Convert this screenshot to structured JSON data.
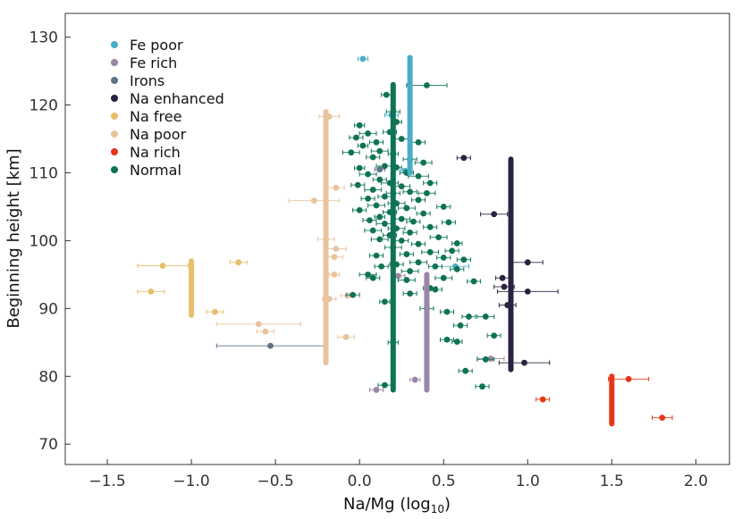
{
  "chart_data": {
    "type": "scatter",
    "xlabel": "Na/Mg (log",
    "xlabel_sub": "10",
    "xlabel_close": ")",
    "ylabel": "Beginning height [km]",
    "xlim": [
      -1.75,
      2.2
    ],
    "ylim": [
      67,
      133.5
    ],
    "xticks": [
      -1.5,
      -1.0,
      -0.5,
      0.0,
      0.5,
      1.0,
      1.5,
      2.0
    ],
    "xtick_labels": [
      "−1.5",
      "−1.0",
      "−0.5",
      "0.0",
      "0.5",
      "1.0",
      "1.5",
      "2.0"
    ],
    "yticks": [
      70,
      80,
      90,
      100,
      110,
      120,
      130
    ],
    "ytick_labels": [
      "70",
      "80",
      "90",
      "100",
      "110",
      "120",
      "130"
    ],
    "grid": false,
    "legend_position": "top-left",
    "categories": [
      {
        "name": "Fe poor",
        "color": "#4aacc9"
      },
      {
        "name": "Fe rich",
        "color": "#9a86a6"
      },
      {
        "name": "Irons",
        "color": "#5f7387"
      },
      {
        "name": "Na enhanced",
        "color": "#2b2140"
      },
      {
        "name": "Na free",
        "color": "#e6bf6b"
      },
      {
        "name": "Na poor",
        "color": "#e8c39e"
      },
      {
        "name": "Na rich",
        "color": "#e5361a"
      },
      {
        "name": "Normal",
        "color": "#0e7355"
      }
    ],
    "range_bars": [
      {
        "category": "Fe poor",
        "x": 0.3,
        "y_low": 110,
        "y_high": 127
      },
      {
        "category": "Fe rich",
        "x": 0.4,
        "y_low": 78,
        "y_high": 95
      },
      {
        "category": "Na enhanced",
        "x": 0.9,
        "y_low": 81,
        "y_high": 112
      },
      {
        "category": "Na free",
        "x": -1.0,
        "y_low": 89,
        "y_high": 97
      },
      {
        "category": "Na poor",
        "x": -0.2,
        "y_low": 82,
        "y_high": 119
      },
      {
        "category": "Na rich",
        "x": 1.5,
        "y_low": 73,
        "y_high": 80
      },
      {
        "category": "Normal",
        "x": 0.2,
        "y_low": 78,
        "y_high": 123
      }
    ],
    "series": [
      {
        "name": "Fe poor",
        "points": [
          {
            "x": 0.02,
            "y": 126.8,
            "xerr": 0.03
          },
          {
            "x": 0.57,
            "y": 96.2,
            "xerr": 0.08
          },
          {
            "x": 0.27,
            "y": 110.3,
            "xerr": 0.03
          },
          {
            "x": 0.19,
            "y": 118.5,
            "xerr": 0.04
          }
        ]
      },
      {
        "name": "Fe rich",
        "points": [
          {
            "x": 0.1,
            "y": 78.0,
            "xerr": 0.04
          },
          {
            "x": 0.33,
            "y": 79.5,
            "xerr": 0.03
          },
          {
            "x": 0.78,
            "y": 82.6,
            "xerr": 0.08
          },
          {
            "x": 0.23,
            "y": 94.8,
            "xerr": 0.04
          }
        ]
      },
      {
        "name": "Irons",
        "points": [
          {
            "x": -0.53,
            "y": 84.5,
            "xerr": 0.32
          },
          {
            "x": 0.12,
            "y": 110.5,
            "xerr": 0.03
          }
        ]
      },
      {
        "name": "Na enhanced",
        "points": [
          {
            "x": 0.62,
            "y": 112.2,
            "xerr": 0.04
          },
          {
            "x": 0.8,
            "y": 103.9,
            "xerr": 0.08
          },
          {
            "x": 1.0,
            "y": 96.8,
            "xerr": 0.09
          },
          {
            "x": 0.85,
            "y": 94.5,
            "xerr": 0.04
          },
          {
            "x": 0.86,
            "y": 93.2,
            "xerr": 0.06
          },
          {
            "x": 1.0,
            "y": 92.5,
            "xerr": 0.18
          },
          {
            "x": 0.88,
            "y": 90.5,
            "xerr": 0.05
          },
          {
            "x": 0.98,
            "y": 82.0,
            "xerr": 0.15
          }
        ]
      },
      {
        "name": "Na free",
        "points": [
          {
            "x": -1.17,
            "y": 96.3,
            "xerr": 0.15
          },
          {
            "x": -1.24,
            "y": 92.5,
            "xerr": 0.08
          },
          {
            "x": -0.86,
            "y": 89.5,
            "xerr": 0.05
          },
          {
            "x": -0.72,
            "y": 96.8,
            "xerr": 0.05
          }
        ]
      },
      {
        "name": "Na poor",
        "points": [
          {
            "x": -0.18,
            "y": 118.3,
            "xerr": 0.06
          },
          {
            "x": -0.14,
            "y": 107.8,
            "xerr": 0.05
          },
          {
            "x": -0.27,
            "y": 105.9,
            "xerr": 0.15
          },
          {
            "x": -0.2,
            "y": 100.2,
            "xerr": 0.05
          },
          {
            "x": -0.14,
            "y": 98.8,
            "xerr": 0.06
          },
          {
            "x": -0.15,
            "y": 97.6,
            "xerr": 0.05
          },
          {
            "x": -0.15,
            "y": 95.0,
            "xerr": 0.03
          },
          {
            "x": -0.07,
            "y": 91.9,
            "xerr": 0.04
          },
          {
            "x": -0.18,
            "y": 91.4,
            "xerr": 0.04
          },
          {
            "x": -0.6,
            "y": 87.7,
            "xerr": 0.25
          },
          {
            "x": -0.56,
            "y": 86.6,
            "xerr": 0.05
          },
          {
            "x": -0.08,
            "y": 85.8,
            "xerr": 0.05
          }
        ]
      },
      {
        "name": "Na rich",
        "points": [
          {
            "x": 1.6,
            "y": 79.6,
            "xerr": 0.12
          },
          {
            "x": 1.09,
            "y": 76.6,
            "xerr": 0.04
          },
          {
            "x": 1.8,
            "y": 73.9,
            "xerr": 0.06
          }
        ]
      },
      {
        "name": "Normal",
        "points": [
          {
            "x": 0.4,
            "y": 122.9,
            "xerr": 0.12
          },
          {
            "x": 0.16,
            "y": 121.5,
            "xerr": 0.03
          },
          {
            "x": 0.2,
            "y": 119.0,
            "xerr": 0.04
          },
          {
            "x": 0.22,
            "y": 117.5,
            "xerr": 0.03
          },
          {
            "x": 0.0,
            "y": 117.0,
            "xerr": 0.03
          },
          {
            "x": 0.18,
            "y": 116.0,
            "xerr": 0.04
          },
          {
            "x": 0.05,
            "y": 115.8,
            "xerr": 0.05
          },
          {
            "x": -0.02,
            "y": 115.2,
            "xerr": 0.04
          },
          {
            "x": 0.25,
            "y": 115.0,
            "xerr": 0.05
          },
          {
            "x": 0.1,
            "y": 114.5,
            "xerr": 0.04
          },
          {
            "x": 0.02,
            "y": 114.0,
            "xerr": 0.03
          },
          {
            "x": 0.35,
            "y": 114.5,
            "xerr": 0.04
          },
          {
            "x": 0.12,
            "y": 113.2,
            "xerr": 0.05
          },
          {
            "x": -0.05,
            "y": 113.0,
            "xerr": 0.05
          },
          {
            "x": 0.2,
            "y": 112.8,
            "xerr": 0.03
          },
          {
            "x": 0.3,
            "y": 112.0,
            "xerr": 0.04
          },
          {
            "x": 0.08,
            "y": 112.3,
            "xerr": 0.04
          },
          {
            "x": 0.38,
            "y": 111.5,
            "xerr": 0.05
          },
          {
            "x": 0.15,
            "y": 111.0,
            "xerr": 0.05
          },
          {
            "x": 0.22,
            "y": 110.8,
            "xerr": 0.03
          },
          {
            "x": 0.0,
            "y": 110.7,
            "xerr": 0.03
          },
          {
            "x": 0.28,
            "y": 110.0,
            "xerr": 0.04
          },
          {
            "x": 0.05,
            "y": 109.8,
            "xerr": 0.05
          },
          {
            "x": 0.35,
            "y": 109.5,
            "xerr": 0.06
          },
          {
            "x": 0.12,
            "y": 109.0,
            "xerr": 0.04
          },
          {
            "x": 0.18,
            "y": 108.5,
            "xerr": 0.05
          },
          {
            "x": 0.42,
            "y": 108.5,
            "xerr": 0.04
          },
          {
            "x": -0.01,
            "y": 108.2,
            "xerr": 0.04
          },
          {
            "x": 0.25,
            "y": 108.0,
            "xerr": 0.05
          },
          {
            "x": 0.08,
            "y": 107.5,
            "xerr": 0.05
          },
          {
            "x": 0.3,
            "y": 107.2,
            "xerr": 0.04
          },
          {
            "x": 0.2,
            "y": 107.0,
            "xerr": 0.04
          },
          {
            "x": 0.4,
            "y": 107.0,
            "xerr": 0.05
          },
          {
            "x": 0.15,
            "y": 106.5,
            "xerr": 0.04
          },
          {
            "x": 0.05,
            "y": 106.2,
            "xerr": 0.04
          },
          {
            "x": 0.35,
            "y": 106.0,
            "xerr": 0.04
          },
          {
            "x": 0.22,
            "y": 105.5,
            "xerr": 0.05
          },
          {
            "x": 0.1,
            "y": 105.2,
            "xerr": 0.05
          },
          {
            "x": 0.5,
            "y": 105.0,
            "xerr": 0.04
          },
          {
            "x": 0.28,
            "y": 104.8,
            "xerr": 0.05
          },
          {
            "x": 0.0,
            "y": 104.5,
            "xerr": 0.04
          },
          {
            "x": 0.18,
            "y": 104.2,
            "xerr": 0.04
          },
          {
            "x": 0.38,
            "y": 104.0,
            "xerr": 0.04
          },
          {
            "x": 0.12,
            "y": 103.5,
            "xerr": 0.03
          },
          {
            "x": 0.25,
            "y": 103.2,
            "xerr": 0.05
          },
          {
            "x": 0.06,
            "y": 103.0,
            "xerr": 0.04
          },
          {
            "x": 0.32,
            "y": 102.8,
            "xerr": 0.04
          },
          {
            "x": 0.53,
            "y": 102.7,
            "xerr": 0.04
          },
          {
            "x": 0.15,
            "y": 102.5,
            "xerr": 0.05
          },
          {
            "x": 0.42,
            "y": 102.0,
            "xerr": 0.04
          },
          {
            "x": 0.22,
            "y": 101.8,
            "xerr": 0.05
          },
          {
            "x": 0.08,
            "y": 101.5,
            "xerr": 0.05
          },
          {
            "x": 0.3,
            "y": 101.2,
            "xerr": 0.04
          },
          {
            "x": 0.18,
            "y": 100.8,
            "xerr": 0.04
          },
          {
            "x": 0.47,
            "y": 100.5,
            "xerr": 0.05
          },
          {
            "x": 0.12,
            "y": 100.2,
            "xerr": 0.05
          },
          {
            "x": 0.25,
            "y": 100.0,
            "xerr": 0.04
          },
          {
            "x": 0.58,
            "y": 99.6,
            "xerr": 0.03
          },
          {
            "x": 0.35,
            "y": 99.5,
            "xerr": 0.04
          },
          {
            "x": 0.2,
            "y": 99.0,
            "xerr": 0.05
          },
          {
            "x": 0.55,
            "y": 98.5,
            "xerr": 0.04
          },
          {
            "x": 0.42,
            "y": 98.3,
            "xerr": 0.05
          },
          {
            "x": 0.28,
            "y": 98.0,
            "xerr": 0.04
          },
          {
            "x": 0.1,
            "y": 97.8,
            "xerr": 0.04
          },
          {
            "x": 0.5,
            "y": 97.5,
            "xerr": 0.04
          },
          {
            "x": 0.62,
            "y": 97.2,
            "xerr": 0.04
          },
          {
            "x": 0.35,
            "y": 96.8,
            "xerr": 0.05
          },
          {
            "x": 0.22,
            "y": 96.5,
            "xerr": 0.04
          },
          {
            "x": 0.45,
            "y": 96.2,
            "xerr": 0.04
          },
          {
            "x": 0.13,
            "y": 96.2,
            "xerr": 0.04
          },
          {
            "x": 0.58,
            "y": 95.8,
            "xerr": 0.04
          },
          {
            "x": 0.3,
            "y": 95.5,
            "xerr": 0.05
          },
          {
            "x": 0.05,
            "y": 95.0,
            "xerr": 0.05
          },
          {
            "x": 0.5,
            "y": 94.5,
            "xerr": 0.05
          },
          {
            "x": 0.08,
            "y": 94.5,
            "xerr": 0.04
          },
          {
            "x": 0.28,
            "y": 94.2,
            "xerr": 0.05
          },
          {
            "x": 0.68,
            "y": 94.0,
            "xerr": 0.04
          },
          {
            "x": 0.42,
            "y": 93.0,
            "xerr": 0.04
          },
          {
            "x": 0.45,
            "y": 92.8,
            "xerr": 0.04
          },
          {
            "x": 0.3,
            "y": 92.2,
            "xerr": 0.04
          },
          {
            "x": -0.04,
            "y": 92.0,
            "xerr": 0.04
          },
          {
            "x": 0.15,
            "y": 91.0,
            "xerr": 0.03
          },
          {
            "x": 0.4,
            "y": 90.0,
            "xerr": 0.04
          },
          {
            "x": 0.52,
            "y": 89.5,
            "xerr": 0.04
          },
          {
            "x": 0.65,
            "y": 88.8,
            "xerr": 0.04
          },
          {
            "x": 0.75,
            "y": 88.8,
            "xerr": 0.05
          },
          {
            "x": 0.6,
            "y": 87.5,
            "xerr": 0.04
          },
          {
            "x": 0.8,
            "y": 86.0,
            "xerr": 0.04
          },
          {
            "x": 0.52,
            "y": 85.4,
            "xerr": 0.04
          },
          {
            "x": 0.58,
            "y": 85.1,
            "xerr": 0.03
          },
          {
            "x": 0.2,
            "y": 85.0,
            "xerr": 0.03
          },
          {
            "x": 0.75,
            "y": 82.5,
            "xerr": 0.05
          },
          {
            "x": 0.63,
            "y": 80.8,
            "xerr": 0.04
          },
          {
            "x": 0.15,
            "y": 78.7,
            "xerr": 0.04
          },
          {
            "x": 0.73,
            "y": 78.5,
            "xerr": 0.04
          }
        ]
      }
    ]
  }
}
